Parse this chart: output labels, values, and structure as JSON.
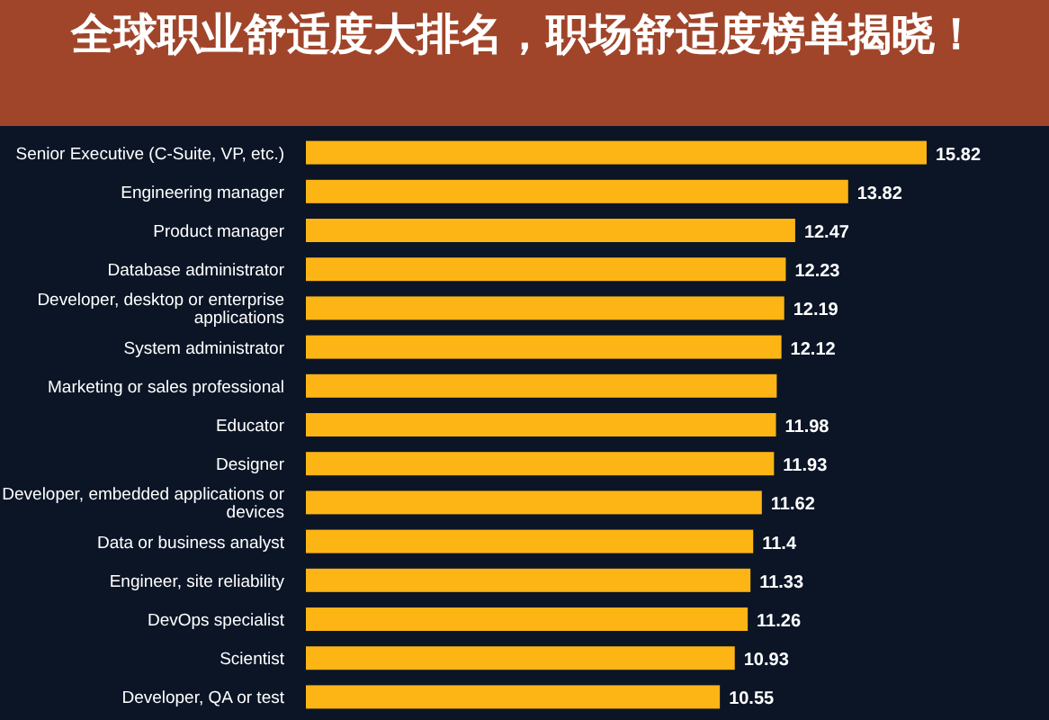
{
  "chart_data": {
    "type": "bar",
    "orientation": "horizontal",
    "title": "全球职业舒适度大排名，职场舒适度榜单揭晓！",
    "categories": [
      "Senior Executive (C-Suite, VP, etc.)",
      "Engineering manager",
      "Product manager",
      "Database administrator",
      "Developer, desktop or enterprise applications",
      "System administrator",
      "Marketing or sales professional",
      "Educator",
      "Designer",
      "Developer, embedded applications or devices",
      "Data or business analyst",
      "Engineer, site reliability",
      "DevOps specialist",
      "Scientist",
      "Developer, QA or test"
    ],
    "values": [
      15.82,
      13.82,
      12.47,
      12.23,
      12.19,
      12.12,
      12.0,
      11.98,
      11.93,
      11.62,
      11.4,
      11.33,
      11.26,
      10.93,
      10.55
    ],
    "value_labels": [
      "15.82",
      "13.82",
      "12.47",
      "12.23",
      "12.19",
      "12.12",
      null,
      "11.98",
      "11.93",
      "11.62",
      "11.4",
      "11.33",
      "11.26",
      "10.93",
      "10.55"
    ],
    "color": "#fdb515"
  }
}
